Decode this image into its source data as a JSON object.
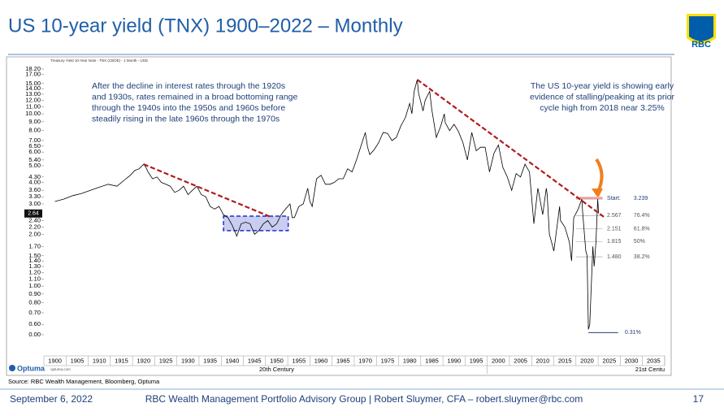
{
  "title": "US 10-year yield (TNX) 1900–2022 – Monthly",
  "logo": "RBC",
  "chart_data": {
    "type": "line",
    "subtitle": "Treasury Yield 10-Year Note - TNX (CBOE) - 1 Month - USD",
    "x": [
      1900,
      1902,
      1904,
      1906,
      1908,
      1910,
      1912,
      1914,
      1916,
      1917,
      1918,
      1919,
      1920,
      1920.5,
      1921,
      1922,
      1923,
      1924,
      1925,
      1926,
      1927,
      1928,
      1929,
      1930,
      1931,
      1932,
      1933,
      1934,
      1935,
      1936,
      1937,
      1938,
      1939,
      1940,
      1941,
      1942,
      1943,
      1944,
      1945,
      1946,
      1947,
      1948,
      1949,
      1950,
      1951,
      1952,
      1953,
      1953.5,
      1954,
      1955,
      1956,
      1957,
      1957.5,
      1958,
      1959,
      1960,
      1961,
      1962,
      1963,
      1964,
      1965,
      1966,
      1967,
      1968,
      1969,
      1970,
      1970.5,
      1971,
      1972,
      1973,
      1974,
      1975,
      1976,
      1977,
      1978,
      1979,
      1980,
      1980.5,
      1981,
      1981.7,
      1982,
      1983,
      1983.5,
      1984.5,
      1985,
      1986,
      1987,
      1987.8,
      1988,
      1989,
      1990,
      1991,
      1992,
      1993,
      1994,
      1995,
      1996,
      1997,
      1998,
      1999,
      2000,
      2001,
      2002,
      2003,
      2004,
      2005,
      2006,
      2007,
      2008,
      2008.9,
      2009,
      2010,
      2010.8,
      2011,
      2011.5,
      2012,
      2012.5,
      2013,
      2013.8,
      2014,
      2015,
      2016,
      2016.5,
      2017,
      2018,
      2018.8,
      2019,
      2019.7,
      2020,
      2020.3,
      2020.6,
      2021,
      2021.3,
      2021.6,
      2022,
      2022.4,
      2022.6
    ],
    "values": [
      3.1,
      3.2,
      3.35,
      3.45,
      3.6,
      3.75,
      3.9,
      3.8,
      4.2,
      4.4,
      4.7,
      4.8,
      5.1,
      4.9,
      4.6,
      4.2,
      4.3,
      4.0,
      3.9,
      3.8,
      3.5,
      3.6,
      3.8,
      3.4,
      3.6,
      3.8,
      3.4,
      3.3,
      2.9,
      2.8,
      2.9,
      2.6,
      2.5,
      2.25,
      1.95,
      2.3,
      2.35,
      2.3,
      2.0,
      2.1,
      2.3,
      2.4,
      2.2,
      2.3,
      2.6,
      2.8,
      3.0,
      2.5,
      2.5,
      2.9,
      3.0,
      3.7,
      3.1,
      2.9,
      4.2,
      4.4,
      3.9,
      3.9,
      4.0,
      4.2,
      4.2,
      4.8,
      4.6,
      5.4,
      6.5,
      7.8,
      6.4,
      5.8,
      6.2,
      6.8,
      7.8,
      7.7,
      7.0,
      7.3,
      8.5,
      9.5,
      11.5,
      10.0,
      13.5,
      15.8,
      13.2,
      10.4,
      12.0,
      13.5,
      10.5,
      7.3,
      8.5,
      10.0,
      8.9,
      8.0,
      8.7,
      7.9,
      6.8,
      5.4,
      7.8,
      6.1,
      6.4,
      6.4,
      4.6,
      5.9,
      6.6,
      4.9,
      4.3,
      3.6,
      4.5,
      4.3,
      5.1,
      4.6,
      2.3,
      3.7,
      3.6,
      2.6,
      3.7,
      3.4,
      2.0,
      1.8,
      1.6,
      2.0,
      2.9,
      2.4,
      2.2,
      1.8,
      1.4,
      2.5,
      2.8,
      3.2,
      2.7,
      1.6,
      1.5,
      0.31,
      0.6,
      1.1,
      1.7,
      1.3,
      1.8,
      3.2,
      2.64
    ],
    "color": "#000000",
    "yscale": "log",
    "xlim": [
      1897.5,
      2037.5
    ],
    "xticks": [
      1900,
      1905,
      1910,
      1915,
      1920,
      1925,
      1930,
      1935,
      1940,
      1945,
      1950,
      1955,
      1960,
      1965,
      1970,
      1975,
      1980,
      1985,
      1990,
      1995,
      2000,
      2005,
      2010,
      2015,
      2020,
      2025,
      2030,
      2035
    ],
    "ylim": [
      0,
      18.2
    ],
    "yticks": [
      {
        "value": 18.2,
        "label": "18.20"
      },
      {
        "value": 17,
        "label": "17.00"
      },
      {
        "value": 15,
        "label": "15.00"
      },
      {
        "value": 14,
        "label": "14.00"
      },
      {
        "value": 13,
        "label": "13.00"
      },
      {
        "value": 12,
        "label": "12.00"
      },
      {
        "value": 11,
        "label": "11.00"
      },
      {
        "value": 10,
        "label": "10.00"
      },
      {
        "value": 9,
        "label": "9.00"
      },
      {
        "value": 8,
        "label": "8.00"
      },
      {
        "value": 7,
        "label": "7.00"
      },
      {
        "value": 6.5,
        "label": "6.50"
      },
      {
        "value": 6,
        "label": "6.00"
      },
      {
        "value": 5.4,
        "label": "5.40"
      },
      {
        "value": 5,
        "label": "5.00"
      },
      {
        "value": 4.3,
        "label": "4.30"
      },
      {
        "value": 4,
        "label": "4.00"
      },
      {
        "value": 3.6,
        "label": "3.60"
      },
      {
        "value": 3.3,
        "label": "3.30"
      },
      {
        "value": 3,
        "label": "3.00"
      },
      {
        "value": 2.4,
        "label": "2.40"
      },
      {
        "value": 2.2,
        "label": "2.20"
      },
      {
        "value": 2,
        "label": "2.00"
      },
      {
        "value": 1.7,
        "label": "1.70"
      },
      {
        "value": 1.5,
        "label": "1.50"
      },
      {
        "value": 1.4,
        "label": "1.40"
      },
      {
        "value": 1.3,
        "label": "1.30"
      },
      {
        "value": 1.2,
        "label": "1.20"
      },
      {
        "value": 1.1,
        "label": "1.10"
      },
      {
        "value": 1,
        "label": "1.00"
      },
      {
        "value": 0.9,
        "label": "0.90"
      },
      {
        "value": 0.8,
        "label": "0.80"
      },
      {
        "value": 0.7,
        "label": "0.70"
      },
      {
        "value": 0.6,
        "label": "0.60"
      },
      {
        "value": 0,
        "label": "0.00"
      }
    ],
    "current_value": 2.64,
    "centuries": [
      "20th Century",
      "21st Centu"
    ],
    "trendlines": [
      {
        "x": [
          1920,
          1949
        ],
        "y": [
          5.1,
          2.5
        ]
      },
      {
        "x": [
          1981.7,
          2024
        ],
        "y": [
          15.8,
          2.5
        ]
      }
    ],
    "range_box": {
      "x": [
        1938,
        1952.6
      ],
      "y": [
        2.1,
        2.55
      ]
    },
    "fib_levels": [
      {
        "name": "Start:",
        "value": 3.239
      },
      {
        "value": 2.567,
        "percent": 76.4,
        "percent_label": "76.4%"
      },
      {
        "value": 2.151,
        "percent": 61.8,
        "percent_label": "61.8%"
      },
      {
        "value": 1.815,
        "percent": 50,
        "percent_label": "50%"
      },
      {
        "value": 1.48,
        "value_label": "1.480",
        "percent": 38.2,
        "percent_label": "38.2%"
      }
    ],
    "low": {
      "x": 2020.3,
      "value": 0.31,
      "label": "0.31%"
    },
    "annotations": [
      [
        "After the decline in interest rates through the 1920s",
        "and 1930s, rates remained in a broad bottoming range",
        "through the 1940s into the 1950s and 1960s before",
        "steadily rising in the late 1960s through the 1970s"
      ],
      [
        "The US 10-year yield is showing early",
        "evidence of stalling/peaking at its prior",
        "cycle high from 2018 near 3.25%"
      ]
    ]
  },
  "brand": "Optuma",
  "brand_url": "optuma.com",
  "source": "Source: RBC Wealth Management, Bloomberg, Optuma",
  "footer": {
    "date": "September 6, 2022",
    "center": "RBC Wealth Management Portfolio Advisory Group  |  Robert Sluymer, CFA – robert.sluymer@rbc.com",
    "page": "17"
  }
}
